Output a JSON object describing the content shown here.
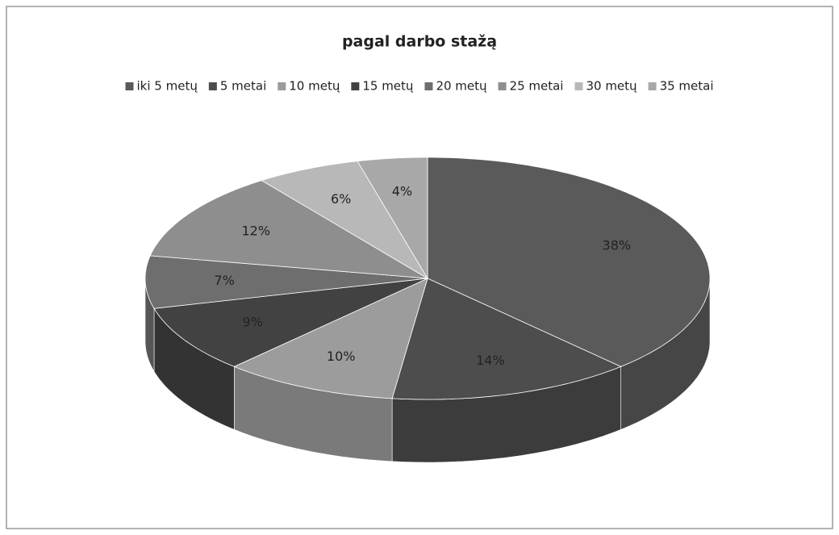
{
  "chart_data": {
    "type": "pie",
    "title": "pagal darbo stažą",
    "categories": [
      "iki 5 metų",
      "5 metai",
      "10 metų",
      "15 metų",
      "20 metų",
      "25 metai",
      "30 metų",
      "35 metai"
    ],
    "values": [
      38,
      14,
      10,
      9,
      7,
      12,
      6,
      4
    ],
    "value_labels": [
      "38%",
      "14%",
      "10%",
      "9%",
      "7%",
      "12%",
      "6%",
      "4%"
    ],
    "colors": [
      "#5a5a5a",
      "#4d4d4d",
      "#9c9c9c",
      "#424242",
      "#6e6e6e",
      "#8e8e8e",
      "#b8b8b8",
      "#a8a8a8"
    ],
    "legend": "top"
  }
}
